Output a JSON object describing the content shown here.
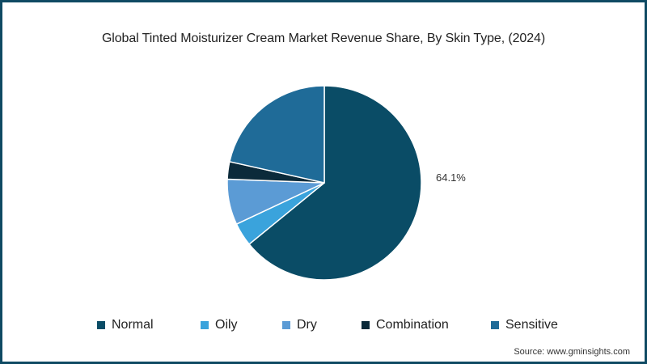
{
  "chart_data": {
    "type": "pie",
    "title": "Global Tinted Moisturizer Cream Market Revenue Share, By Skin Type, (2024)",
    "categories": [
      "Normal",
      "Oily",
      "Dry",
      "Combination",
      "Sensitive"
    ],
    "values": [
      64.1,
      3.9,
      7.6,
      2.9,
      21.5
    ],
    "colors": [
      "#0a4c66",
      "#3aa3dc",
      "#5b9bd5",
      "#0b2a3a",
      "#1f6b98"
    ],
    "data_labels": [
      {
        "category": "Normal",
        "text": "64.1%"
      }
    ],
    "legend_position": "bottom",
    "start_angle": "12 o'clock, clockwise"
  },
  "title": "Global Tinted Moisturizer Cream Market Revenue Share, By Skin Type, (2024)",
  "label": "64.1%",
  "legend": [
    {
      "label": "Normal",
      "color": "#0a4c66"
    },
    {
      "label": "Oily",
      "color": "#3aa3dc"
    },
    {
      "label": "Dry",
      "color": "#5b9bd5"
    },
    {
      "label": "Combination",
      "color": "#0b2a3a"
    },
    {
      "label": "Sensitive",
      "color": "#1f6b98"
    }
  ],
  "source": "Source: www.gminsights.com"
}
